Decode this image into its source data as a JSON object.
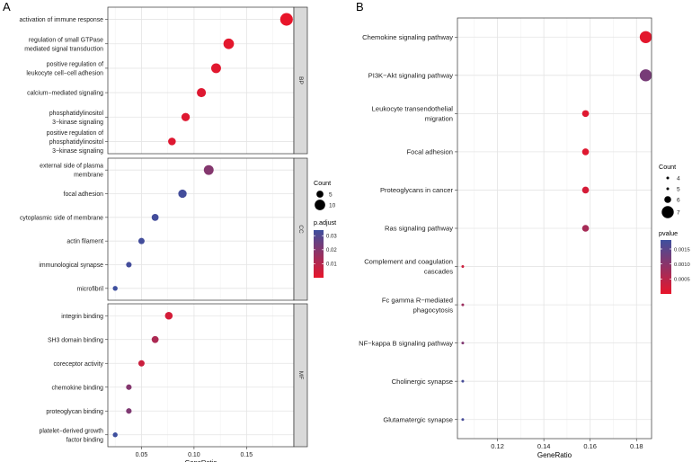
{
  "chart_data": [
    {
      "panel_label": "A",
      "type": "scatter",
      "subtitle": "dot plot of GO enrichment (BP / CC / MF facets)",
      "xlabel": "GeneRatio",
      "xlim": [
        0.018,
        0.195
      ],
      "xticks": [
        0.05,
        0.1,
        0.15
      ],
      "xtick_labels": [
        "0.05",
        "0.10",
        "0.15"
      ],
      "facets": [
        {
          "strip_label": "BP",
          "terms": [
            {
              "lines": [
                "activation of immune response"
              ],
              "gene_ratio": 0.188,
              "count": 13,
              "p_adjust": 0.0001
            },
            {
              "lines": [
                "regulation of small GTPase",
                "mediated signal transduction"
              ],
              "gene_ratio": 0.133,
              "count": 10,
              "p_adjust": 0.001
            },
            {
              "lines": [
                "positive regulation of",
                "leukocyte cell−cell adhesion"
              ],
              "gene_ratio": 0.121,
              "count": 9,
              "p_adjust": 0.0015
            },
            {
              "lines": [
                "calcium−mediated signaling"
              ],
              "gene_ratio": 0.107,
              "count": 8,
              "p_adjust": 0.002
            },
            {
              "lines": [
                "phosphatidylinositol",
                "3−kinase signaling"
              ],
              "gene_ratio": 0.092,
              "count": 7,
              "p_adjust": 0.002
            },
            {
              "lines": [
                "positive regulation of",
                "phosphatidylinositol",
                "3−kinase signaling"
              ],
              "gene_ratio": 0.079,
              "count": 6,
              "p_adjust": 0.002
            }
          ]
        },
        {
          "strip_label": "CC",
          "terms": [
            {
              "lines": [
                "external side of plasma",
                "membrane"
              ],
              "gene_ratio": 0.114,
              "count": 9,
              "p_adjust": 0.02
            },
            {
              "lines": [
                "focal adhesion"
              ],
              "gene_ratio": 0.089,
              "count": 7,
              "p_adjust": 0.033
            },
            {
              "lines": [
                "cytoplasmic side of membrane"
              ],
              "gene_ratio": 0.063,
              "count": 5,
              "p_adjust": 0.033
            },
            {
              "lines": [
                "actin filament"
              ],
              "gene_ratio": 0.05,
              "count": 4,
              "p_adjust": 0.033
            },
            {
              "lines": [
                "immunological synapse"
              ],
              "gene_ratio": 0.038,
              "count": 3,
              "p_adjust": 0.033
            },
            {
              "lines": [
                "microfibril"
              ],
              "gene_ratio": 0.025,
              "count": 2,
              "p_adjust": 0.034
            }
          ]
        },
        {
          "strip_label": "MF",
          "terms": [
            {
              "lines": [
                "integrin binding"
              ],
              "gene_ratio": 0.076,
              "count": 6,
              "p_adjust": 0.004
            },
            {
              "lines": [
                "SH3 domain binding"
              ],
              "gene_ratio": 0.063,
              "count": 5,
              "p_adjust": 0.012
            },
            {
              "lines": [
                "coreceptor activity"
              ],
              "gene_ratio": 0.05,
              "count": 4,
              "p_adjust": 0.006
            },
            {
              "lines": [
                "chemokine binding"
              ],
              "gene_ratio": 0.038,
              "count": 3,
              "p_adjust": 0.02
            },
            {
              "lines": [
                "proteoglycan binding"
              ],
              "gene_ratio": 0.038,
              "count": 3,
              "p_adjust": 0.021
            },
            {
              "lines": [
                "platelet−derived growth",
                "factor binding"
              ],
              "gene_ratio": 0.025,
              "count": 2,
              "p_adjust": 0.034
            }
          ]
        }
      ],
      "size_legend": {
        "title": "Count",
        "values": [
          5,
          10
        ],
        "labels": [
          "5",
          "10"
        ]
      },
      "color_legend": {
        "title": "p.adjust",
        "min": 0,
        "max": 0.034,
        "ticks": [
          0.01,
          0.02,
          0.03
        ],
        "tick_labels": [
          "0.01",
          "0.02",
          "0.03"
        ],
        "color_low": "#e8152a",
        "color_high": "#3e4f9e"
      }
    },
    {
      "panel_label": "B",
      "type": "scatter",
      "subtitle": "dot plot of KEGG pathway enrichment",
      "xlabel": "GeneRatio",
      "xlim": [
        0.1027,
        0.1865
      ],
      "xticks": [
        0.12,
        0.14,
        0.16,
        0.18
      ],
      "xtick_labels": [
        "0.12",
        "0.14",
        "0.16",
        "0.18"
      ],
      "terms": [
        {
          "lines": [
            "Chemokine signaling pathway"
          ],
          "gene_ratio": 0.184,
          "count": 7,
          "p_value": 5e-05
        },
        {
          "lines": [
            "PI3K−Akt signaling pathway"
          ],
          "gene_ratio": 0.184,
          "count": 7,
          "p_value": 0.0012
        },
        {
          "lines": [
            "Leukocyte transendothelial",
            "migration"
          ],
          "gene_ratio": 0.158,
          "count": 6,
          "p_value": 0.0001
        },
        {
          "lines": [
            "Focal adhesion"
          ],
          "gene_ratio": 0.158,
          "count": 6,
          "p_value": 0.0001
        },
        {
          "lines": [
            "Proteoglycans in cancer"
          ],
          "gene_ratio": 0.158,
          "count": 6,
          "p_value": 0.0002
        },
        {
          "lines": [
            "Ras signaling pathway"
          ],
          "gene_ratio": 0.158,
          "count": 6,
          "p_value": 0.0007
        },
        {
          "lines": [
            "Complement and coagulation",
            "cascades"
          ],
          "gene_ratio": 0.105,
          "count": 4,
          "p_value": 0.0003
        },
        {
          "lines": [
            "Fc gamma R−mediated",
            "phagocytosis"
          ],
          "gene_ratio": 0.105,
          "count": 4,
          "p_value": 0.0008
        },
        {
          "lines": [
            "NF−kappa B signaling pathway"
          ],
          "gene_ratio": 0.105,
          "count": 4,
          "p_value": 0.0011
        },
        {
          "lines": [
            "Cholinergic synapse"
          ],
          "gene_ratio": 0.105,
          "count": 4,
          "p_value": 0.0017
        },
        {
          "lines": [
            "Glutamatergic synapse"
          ],
          "gene_ratio": 0.105,
          "count": 4,
          "p_value": 0.0017
        }
      ],
      "size_legend": {
        "title": "Count",
        "values": [
          4,
          5,
          6,
          7
        ],
        "labels": [
          "4",
          "5",
          "6",
          "7"
        ]
      },
      "color_legend": {
        "title": "pvalue",
        "min": 0,
        "max": 0.0018,
        "ticks": [
          0.0005,
          0.001,
          0.0015
        ],
        "tick_labels": [
          "0.0005",
          "0.0010",
          "0.0015"
        ],
        "color_low": "#e8152a",
        "color_high": "#3e4f9e"
      }
    }
  ]
}
